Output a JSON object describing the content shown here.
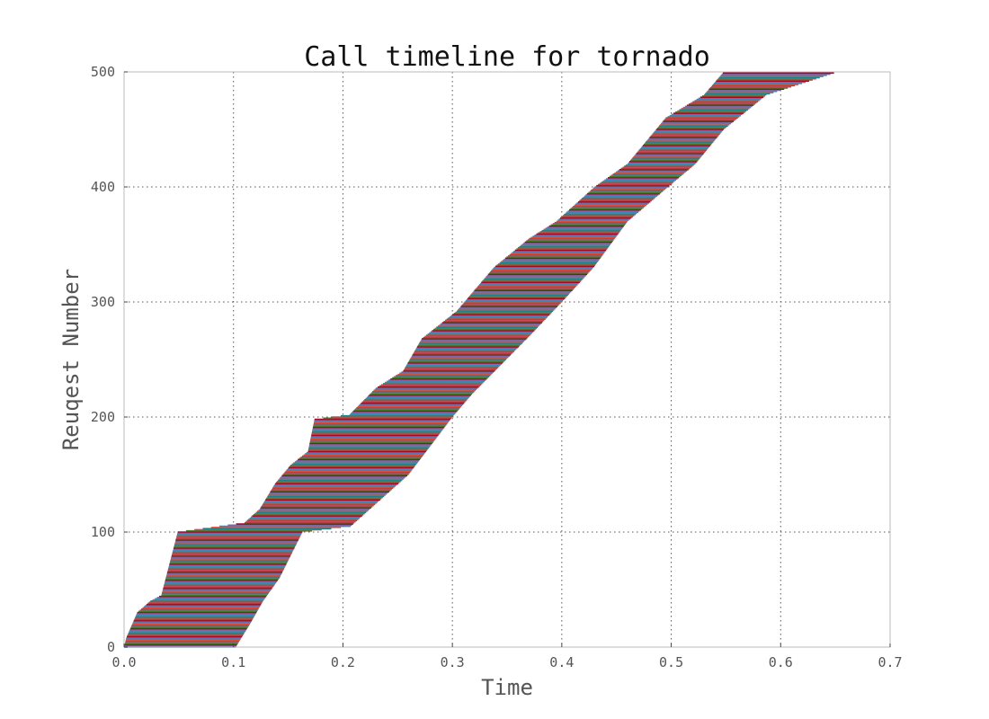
{
  "chart_data": {
    "type": "timeline",
    "title": "Call timeline for tornado",
    "xlabel": "Time",
    "ylabel": "Reuqest Number",
    "xlim": [
      0.0,
      0.7
    ],
    "ylim": [
      0,
      500
    ],
    "xticks": [
      "0.0",
      "0.1",
      "0.2",
      "0.3",
      "0.4",
      "0.5",
      "0.6",
      "0.7"
    ],
    "yticks": [
      "0",
      "100",
      "200",
      "300",
      "400",
      "500"
    ],
    "grid": true,
    "num_requests": 500,
    "request_start_curve": [
      [
        0,
        0.0
      ],
      [
        8,
        0.002
      ],
      [
        30,
        0.012
      ],
      [
        40,
        0.024
      ],
      [
        45,
        0.034
      ],
      [
        100,
        0.049
      ],
      [
        108,
        0.11
      ],
      [
        120,
        0.124
      ],
      [
        142,
        0.138
      ],
      [
        158,
        0.152
      ],
      [
        170,
        0.168
      ],
      [
        198,
        0.174
      ],
      [
        202,
        0.206
      ],
      [
        225,
        0.23
      ],
      [
        240,
        0.255
      ],
      [
        268,
        0.272
      ],
      [
        292,
        0.304
      ],
      [
        310,
        0.32
      ],
      [
        330,
        0.338
      ],
      [
        355,
        0.37
      ],
      [
        370,
        0.395
      ],
      [
        400,
        0.43
      ],
      [
        420,
        0.46
      ],
      [
        460,
        0.495
      ],
      [
        480,
        0.53
      ],
      [
        500,
        0.548
      ]
    ],
    "request_end_curve": [
      [
        0,
        0.102
      ],
      [
        20,
        0.115
      ],
      [
        40,
        0.127
      ],
      [
        60,
        0.142
      ],
      [
        100,
        0.163
      ],
      [
        105,
        0.207
      ],
      [
        150,
        0.26
      ],
      [
        200,
        0.3
      ],
      [
        220,
        0.318
      ],
      [
        270,
        0.37
      ],
      [
        300,
        0.4
      ],
      [
        330,
        0.429
      ],
      [
        370,
        0.46
      ],
      [
        400,
        0.497
      ],
      [
        420,
        0.522
      ],
      [
        450,
        0.548
      ],
      [
        480,
        0.587
      ],
      [
        500,
        0.652
      ]
    ],
    "series_colors": [
      "#348ABD",
      "#7A68A6",
      "#A60628",
      "#467821",
      "#CF4457",
      "#188487",
      "#E24A33"
    ]
  }
}
